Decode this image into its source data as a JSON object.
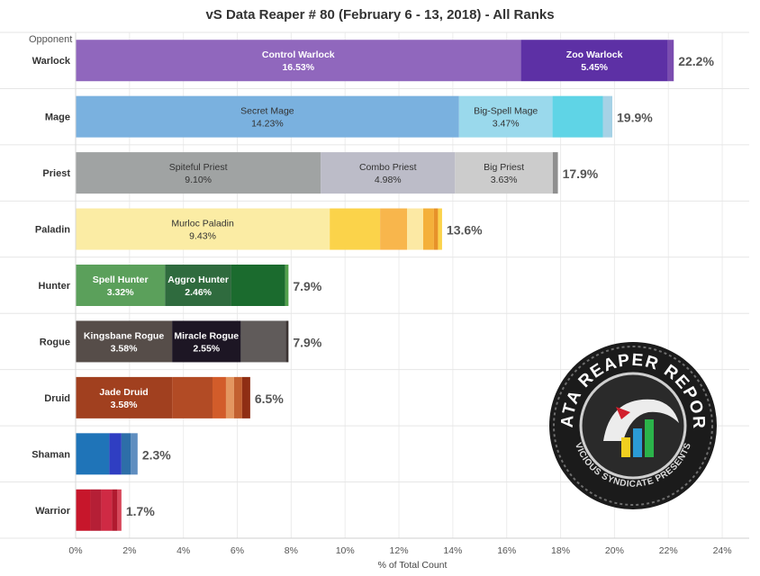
{
  "title": "vS Data Reaper # 80 (February 6 - 13, 2018) - All Ranks",
  "logo": {
    "top_text": "DATA REAPER REPORT",
    "bottom_text": "VICIOUS SYNDICATE PRESENTS"
  },
  "chart_data": {
    "type": "bar",
    "orientation": "horizontal",
    "stacked": true,
    "row_axis_title": "Opponent",
    "xlabel": "% of Total Count",
    "xlim": [
      0,
      25
    ],
    "xticks": [
      "0%",
      "2%",
      "4%",
      "6%",
      "8%",
      "10%",
      "12%",
      "14%",
      "16%",
      "18%",
      "20%",
      "22%",
      "24%"
    ],
    "grid": true,
    "categories": [
      {
        "class": "Warlock",
        "total_label": "22.2%",
        "segments": [
          {
            "name": "Control Warlock",
            "value_label": "16.53%",
            "value": 16.53,
            "color": "#9067bd",
            "text_color": "#ffffff"
          },
          {
            "name": "Zoo Warlock",
            "value_label": "5.45%",
            "value": 5.45,
            "color": "#5d30a5",
            "text_color": "#ffffff"
          },
          {
            "value": 0.22,
            "color": "#7b4db0"
          }
        ]
      },
      {
        "class": "Mage",
        "total_label": "19.9%",
        "segments": [
          {
            "name": "Secret Mage",
            "value_label": "14.23%",
            "value": 14.23,
            "color": "#7ab1df",
            "text_color": "#333333"
          },
          {
            "name": "Big-Spell Mage",
            "value_label": "3.47%",
            "value": 3.47,
            "color": "#9ad9ec",
            "text_color": "#333333"
          },
          {
            "value": 1.87,
            "color": "#5fd4e6"
          },
          {
            "value": 0.35,
            "color": "#a6d2e6"
          }
        ]
      },
      {
        "class": "Priest",
        "total_label": "17.9%",
        "segments": [
          {
            "name": "Spiteful Priest",
            "value_label": "9.10%",
            "value": 9.1,
            "color": "#a0a3a3",
            "text_color": "#333333"
          },
          {
            "name": "Combo Priest",
            "value_label": "4.98%",
            "value": 4.98,
            "color": "#bcbcc8",
            "text_color": "#333333"
          },
          {
            "name": "Big Priest",
            "value_label": "3.63%",
            "value": 3.63,
            "color": "#cccccc",
            "text_color": "#333333"
          },
          {
            "value": 0.19,
            "color": "#8f8f8f"
          }
        ]
      },
      {
        "class": "Paladin",
        "total_label": "13.6%",
        "segments": [
          {
            "name": "Murloc Paladin",
            "value_label": "9.43%",
            "value": 9.43,
            "color": "#fbeca4",
            "text_color": "#333333"
          },
          {
            "value": 1.87,
            "color": "#fbd34a"
          },
          {
            "value": 1.0,
            "color": "#f8b64c"
          },
          {
            "value": 0.6,
            "color": "#fce9a4"
          },
          {
            "value": 0.4,
            "color": "#f4b03a"
          },
          {
            "value": 0.15,
            "color": "#e7922a"
          },
          {
            "value": 0.15,
            "color": "#fbd34a"
          }
        ]
      },
      {
        "class": "Hunter",
        "total_label": "7.9%",
        "segments": [
          {
            "name": "Spell Hunter",
            "value_label": "3.32%",
            "value": 3.32,
            "color": "#5ba05b",
            "text_color": "#ffffff"
          },
          {
            "name": "Aggro Hunter",
            "value_label": "2.46%",
            "value": 2.46,
            "color": "#2f6b3e",
            "text_color": "#ffffff"
          },
          {
            "value": 2.0,
            "color": "#1b6b2e"
          },
          {
            "value": 0.12,
            "color": "#52a04c"
          }
        ]
      },
      {
        "class": "Rogue",
        "total_label": "7.9%",
        "segments": [
          {
            "name": "Kingsbane Rogue",
            "value_label": "3.58%",
            "value": 3.58,
            "color": "#564d49",
            "text_color": "#ffffff"
          },
          {
            "name": "Miracle Rogue",
            "value_label": "2.55%",
            "value": 2.55,
            "color": "#1d1624",
            "text_color": "#ffffff"
          },
          {
            "value": 1.67,
            "color": "#605b5a"
          },
          {
            "value": 0.1,
            "color": "#3b3332"
          }
        ]
      },
      {
        "class": "Druid",
        "total_label": "6.5%",
        "segments": [
          {
            "name": "Jade Druid",
            "value_label": "3.58%",
            "value": 3.58,
            "color": "#a1401f",
            "text_color": "#ffffff"
          },
          {
            "value": 1.5,
            "color": "#b24b25"
          },
          {
            "value": 0.5,
            "color": "#d25c2a"
          },
          {
            "value": 0.3,
            "color": "#e39660"
          },
          {
            "value": 0.3,
            "color": "#c26030"
          },
          {
            "value": 0.3,
            "color": "#8f2e14"
          }
        ]
      },
      {
        "class": "Shaman",
        "total_label": "2.3%",
        "segments": [
          {
            "value": 1.25,
            "color": "#1f74b8"
          },
          {
            "value": 0.45,
            "color": "#2f3ec2"
          },
          {
            "value": 0.35,
            "color": "#2d6ea8"
          },
          {
            "value": 0.25,
            "color": "#5f8ec0"
          }
        ]
      },
      {
        "class": "Warrior",
        "total_label": "1.7%",
        "segments": [
          {
            "value": 0.55,
            "color": "#c7162b"
          },
          {
            "value": 0.4,
            "color": "#b51f36"
          },
          {
            "value": 0.4,
            "color": "#cf2a44"
          },
          {
            "value": 0.2,
            "color": "#b11a2f"
          },
          {
            "value": 0.15,
            "color": "#d8475a"
          }
        ]
      }
    ]
  }
}
